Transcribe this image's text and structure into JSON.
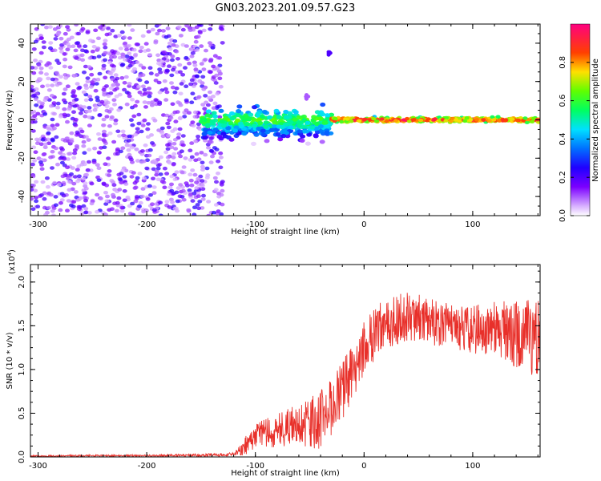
{
  "title": "GN03.2023.201.09.57.G23",
  "colors": {
    "line": "#e8302a",
    "scatter_purple": "#7b1fd6",
    "colormap": [
      "#ffffff",
      "#a000ff",
      "#3000ff",
      "#0060ff",
      "#00e0ff",
      "#00ff40",
      "#b0ff00",
      "#ffa000",
      "#ff0000",
      "#ff0080"
    ]
  },
  "chart_data": [
    {
      "type": "heatmap",
      "xlabel": "Height of straight line (km)",
      "ylabel": "Frequency (Hz)",
      "xlim": [
        -307,
        162
      ],
      "ylim": [
        -50,
        50
      ],
      "x_ticks": [
        -300,
        -200,
        -100,
        0,
        100
      ],
      "x_tick_labels": [
        "-300",
        "-200",
        "-100",
        "0",
        "100"
      ],
      "y_ticks": [
        -40,
        -20,
        0,
        20,
        40
      ],
      "y_tick_labels": [
        "-40",
        "-20",
        "0",
        "20",
        "40"
      ],
      "colorbar": {
        "label": "Normalized spectral amplitude",
        "range": [
          0,
          1
        ],
        "ticks": [
          0.0,
          0.2,
          0.4,
          0.6,
          0.8
        ],
        "tick_labels": [
          "0.0",
          "0.2",
          "0.4",
          "0.6",
          "0.8"
        ]
      },
      "regions": [
        {
          "x_range": [
            -307,
            -130
          ],
          "freq_range": [
            -50,
            50
          ],
          "amplitude_range": [
            0.05,
            0.25
          ],
          "pattern": "scattered noise"
        },
        {
          "x_range": [
            -150,
            -30
          ],
          "freq_range": [
            -15,
            10
          ],
          "amplitude_range": [
            0.2,
            0.6
          ],
          "pattern": "broadened signal"
        },
        {
          "x_range": [
            -30,
            162
          ],
          "freq_range": [
            -2,
            2
          ],
          "amplitude_range": [
            0.5,
            1.0
          ],
          "pattern": "narrow line at 0 Hz"
        }
      ],
      "features": [
        {
          "x": -32,
          "freq": 35,
          "amplitude": 0.2
        },
        {
          "x": -52,
          "freq": 12,
          "amplitude": 0.1
        }
      ]
    },
    {
      "type": "line",
      "xlabel": "Height of straight line (km)",
      "ylabel": "SNR (10 * v/v)",
      "y_scale_label": "(x10",
      "y_scale_exponent": "4",
      "y_scale_suffix": ")",
      "xlim": [
        -307,
        162
      ],
      "ylim": [
        0,
        22000
      ],
      "x_ticks": [
        -300,
        -200,
        -100,
        0,
        100
      ],
      "x_tick_labels": [
        "-300",
        "-200",
        "-100",
        "0",
        "100"
      ],
      "y_ticks": [
        0,
        5000,
        10000,
        15000,
        20000
      ],
      "y_tick_labels": [
        "0.0",
        "0.5",
        "1.0",
        "1.5",
        "2.0"
      ],
      "series": [
        {
          "x": [
            -307,
            -250,
            -200,
            -150,
            -120,
            -110,
            -100,
            -80,
            -60,
            -40,
            -20,
            0,
            20,
            40,
            60,
            80,
            100,
            120,
            140,
            162
          ],
          "y": [
            100,
            150,
            150,
            200,
            300,
            1200,
            2500,
            3000,
            3800,
            4200,
            7500,
            12500,
            15500,
            16000,
            15500,
            15000,
            14500,
            14800,
            14000,
            13000
          ],
          "y_spread": [
            80,
            100,
            100,
            150,
            200,
            1000,
            1500,
            2000,
            2500,
            3500,
            3500,
            3000,
            3000,
            3000,
            2800,
            2500,
            2800,
            3000,
            4000,
            5000
          ]
        }
      ]
    }
  ]
}
